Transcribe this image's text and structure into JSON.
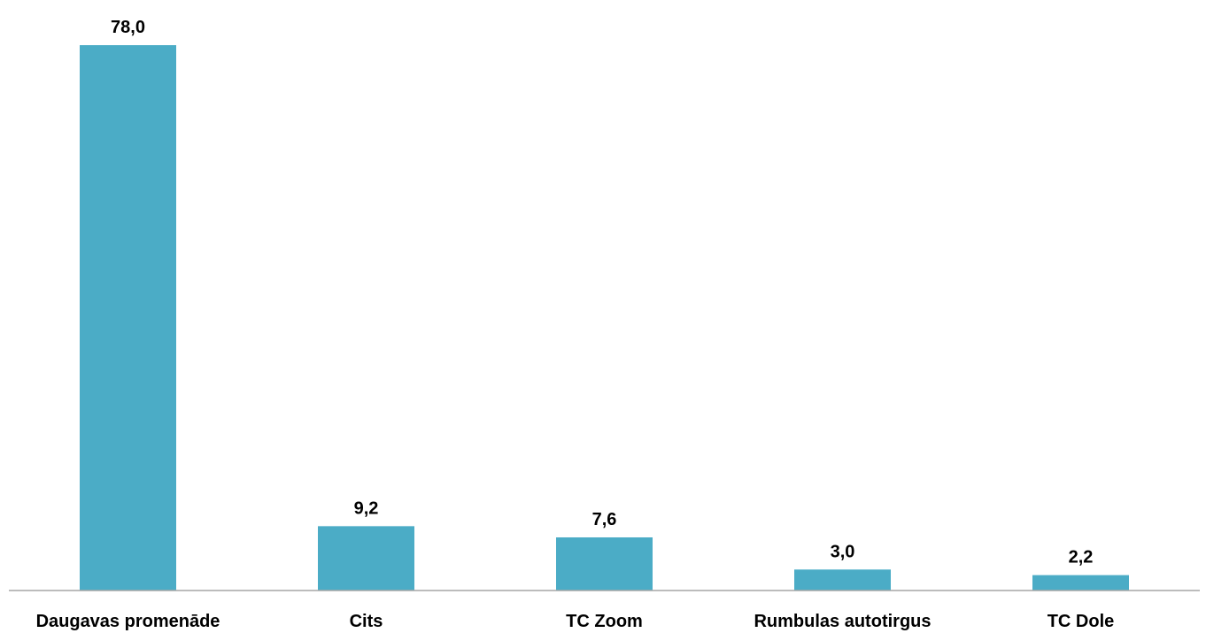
{
  "chart_data": {
    "type": "bar",
    "categories": [
      "Daugavas promenāde",
      "Cits",
      "TC Zoom",
      "Rumbulas autotirgus",
      "TC Dole"
    ],
    "values": [
      78.0,
      9.2,
      7.6,
      3.0,
      2.2
    ],
    "value_labels": [
      "78,0",
      "9,2",
      "7,6",
      "3,0",
      "2,2"
    ],
    "title": "",
    "xlabel": "",
    "ylabel": "",
    "ylim": [
      0,
      78.0
    ],
    "grid": false,
    "legend": "none",
    "bar_color": "#4BACC6",
    "axis_color": "#A6A6A6"
  }
}
